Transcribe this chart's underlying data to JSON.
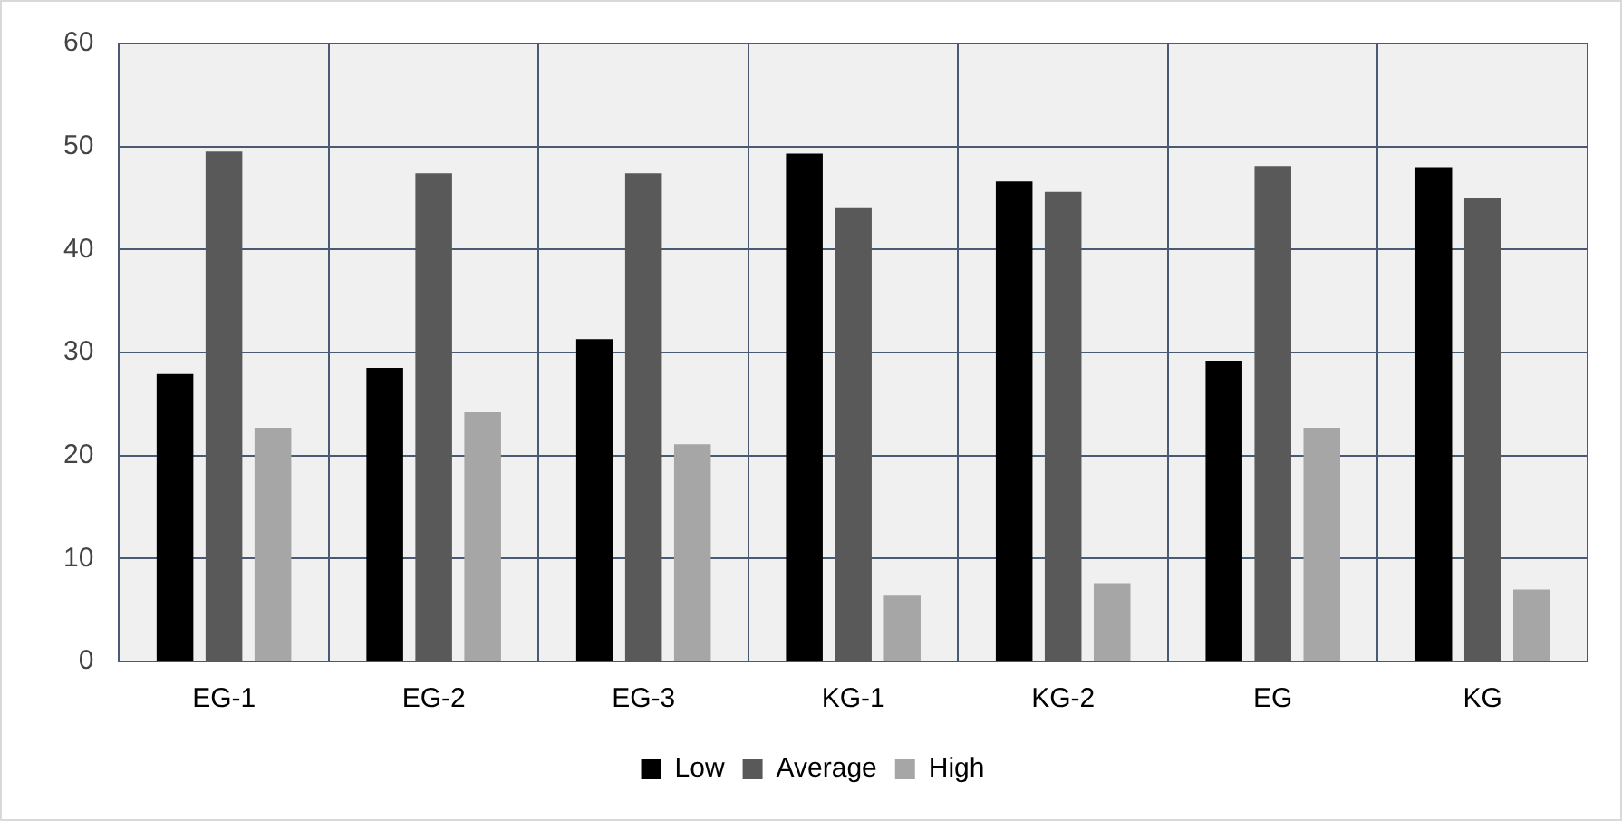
{
  "chart_data": {
    "type": "bar",
    "categories": [
      "EG-1",
      "EG-2",
      "EG-3",
      "KG-1",
      "KG-2",
      "EG",
      "KG"
    ],
    "series": [
      {
        "name": "Low",
        "color": "#000000",
        "values": [
          27.9,
          28.5,
          31.3,
          49.3,
          46.6,
          29.2,
          48.0
        ]
      },
      {
        "name": "Average",
        "color": "#595959",
        "values": [
          49.5,
          47.4,
          47.4,
          44.1,
          45.6,
          48.1,
          45.0
        ]
      },
      {
        "name": "High",
        "color": "#a6a6a6",
        "values": [
          22.7,
          24.2,
          21.1,
          6.4,
          7.6,
          22.7,
          7.0
        ]
      }
    ],
    "ylim": [
      0,
      60
    ],
    "yticks": [
      0,
      10,
      20,
      30,
      40,
      50,
      60
    ],
    "grid": true,
    "legend": "bottom"
  }
}
